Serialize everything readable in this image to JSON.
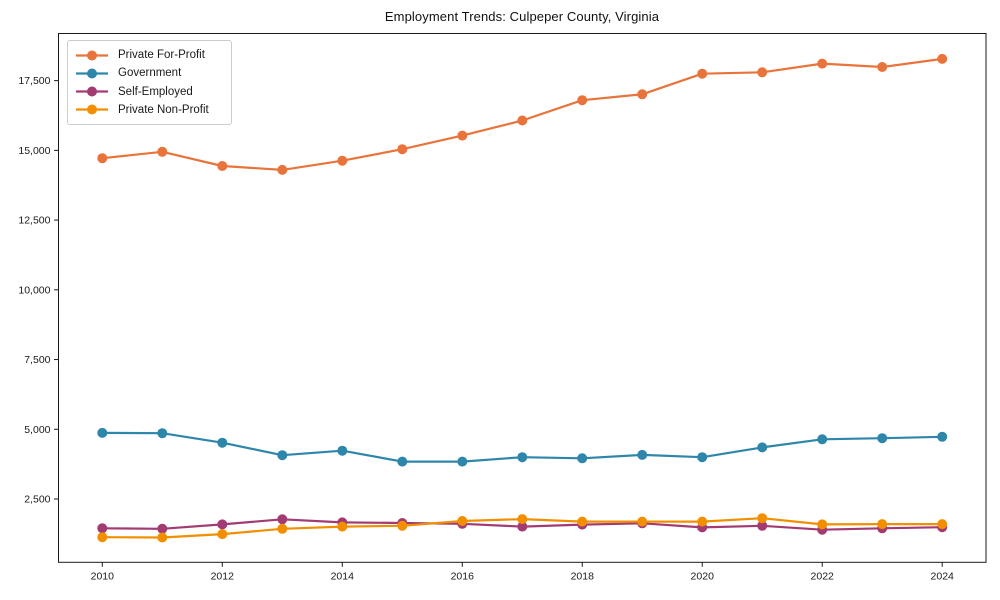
{
  "figure": {
    "background": "#ffffff",
    "spine_color": "#1a1a1a",
    "tick_color": "#1a1a1a",
    "legend_border_color": "#cccccc"
  },
  "chart_data": {
    "type": "line",
    "title": "Employment Trends: Culpeper County, Virginia",
    "xlabel": "",
    "ylabel": "",
    "grid": false,
    "legend_position": "upper-left",
    "xlim": [
      2009.27,
      2024.73
    ],
    "ylim": [
      230,
      19190
    ],
    "x": [
      2010,
      2011,
      2012,
      2013,
      2014,
      2015,
      2016,
      2017,
      2018,
      2019,
      2020,
      2021,
      2022,
      2023,
      2024
    ],
    "x_ticks": [
      2010,
      2012,
      2014,
      2016,
      2018,
      2020,
      2022,
      2024
    ],
    "x_tick_labels": [
      "2010",
      "2012",
      "2014",
      "2016",
      "2018",
      "2020",
      "2022",
      "2024"
    ],
    "y_ticks": [
      2500,
      5000,
      7500,
      10000,
      12500,
      15000,
      17500
    ],
    "y_tick_labels": [
      "2,500",
      "5,000",
      "7,500",
      "10,000",
      "12,500",
      "15,000",
      "17,500"
    ],
    "series": [
      {
        "name": "Private For-Profit",
        "color": "#E8743B",
        "values": [
          14720,
          14950,
          14440,
          14300,
          14630,
          15040,
          15530,
          16070,
          16800,
          17010,
          17750,
          17800,
          18110,
          17990,
          18280
        ]
      },
      {
        "name": "Government",
        "color": "#2E86AB",
        "values": [
          4870,
          4860,
          4520,
          4070,
          4230,
          3840,
          3840,
          4000,
          3960,
          4080,
          4000,
          4350,
          4640,
          4680,
          4730
        ]
      },
      {
        "name": "Self-Employed",
        "color": "#A23B72",
        "values": [
          1450,
          1430,
          1590,
          1770,
          1660,
          1640,
          1610,
          1510,
          1580,
          1630,
          1480,
          1540,
          1400,
          1450,
          1490
        ]
      },
      {
        "name": "Private Non-Profit",
        "color": "#F18F01",
        "values": [
          1130,
          1120,
          1240,
          1430,
          1510,
          1540,
          1710,
          1780,
          1690,
          1690,
          1690,
          1810,
          1590,
          1600,
          1600
        ]
      }
    ]
  }
}
